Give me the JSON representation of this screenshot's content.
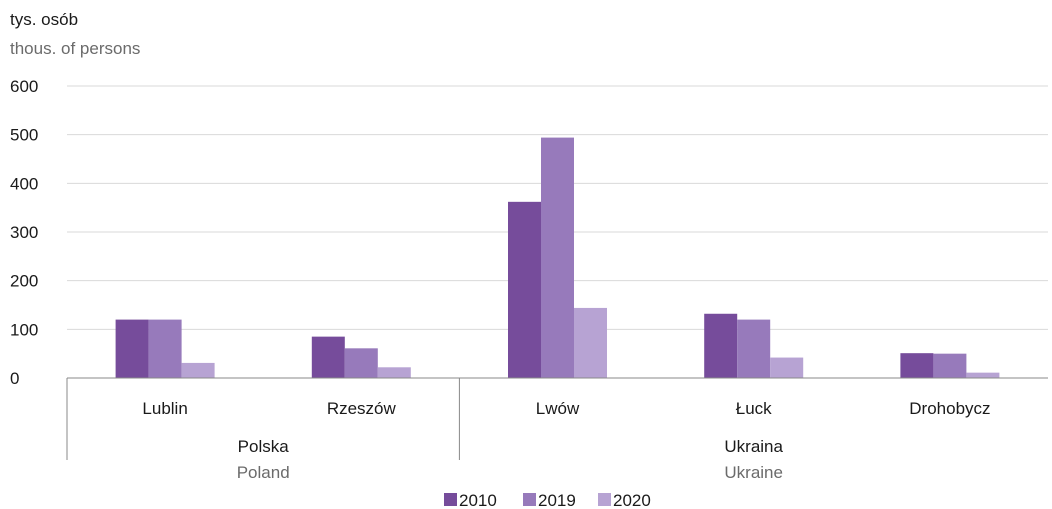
{
  "chart_data": {
    "type": "bar",
    "ylabel": "tys. osób",
    "ylabel_en": "thous. of persons",
    "ylim": [
      0,
      600
    ],
    "yticks": [
      0,
      100,
      200,
      300,
      400,
      500,
      600
    ],
    "grid": true,
    "legend_position": "bottom-center",
    "categories": [
      "Lublin",
      "Rzeszów",
      "Lwów",
      "Łuck",
      "Drohobycz"
    ],
    "groups": [
      {
        "name": "Polska",
        "name_en": "Poland",
        "categories": [
          "Lublin",
          "Rzeszów"
        ]
      },
      {
        "name": "Ukraina",
        "name_en": "Ukraine",
        "categories": [
          "Lwów",
          "Łuck",
          "Drohobycz"
        ]
      }
    ],
    "series": [
      {
        "name": "2010",
        "color": "#764c9b",
        "values": [
          120,
          85,
          362,
          132,
          51
        ]
      },
      {
        "name": "2019",
        "color": "#977abb",
        "values": [
          120,
          61,
          494,
          120,
          50
        ]
      },
      {
        "name": "2020",
        "color": "#b7a3d3",
        "values": [
          31,
          22,
          144,
          42,
          11
        ]
      }
    ]
  }
}
